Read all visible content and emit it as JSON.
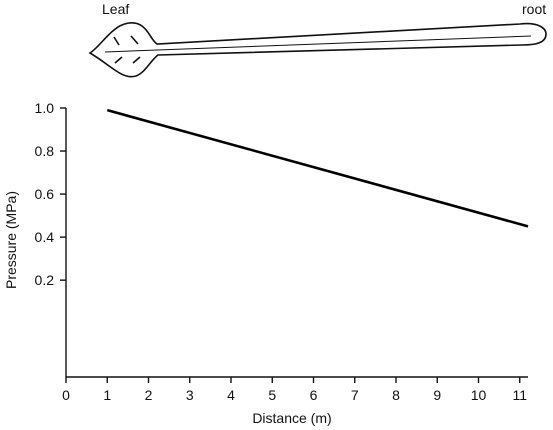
{
  "diagram": {
    "leaf_label": "Leaf",
    "root_label": "root"
  },
  "chart_data": {
    "type": "line",
    "title": "",
    "xlabel": "Distance (m)",
    "ylabel": "Pressure (MPa)",
    "xlim": [
      0,
      11.2
    ],
    "ylim": [
      -0.25,
      1.0
    ],
    "xticks": [
      0,
      1,
      2,
      3,
      4,
      5,
      6,
      7,
      8,
      9,
      10,
      11
    ],
    "xtick_labels": [
      "0",
      "1",
      "2",
      "3",
      "4",
      "5",
      "6",
      "7",
      "8",
      "9",
      "10",
      "11"
    ],
    "yticks": [
      0.2,
      0.4,
      0.6,
      0.8,
      1.0
    ],
    "ytick_labels": [
      "0.2",
      "0.4",
      "0.6",
      "0.8",
      "1.0"
    ],
    "grid": false,
    "legend": "none",
    "series": [
      {
        "x": [
          1,
          11.2
        ],
        "y": [
          0.99,
          0.45
        ],
        "color": "#000000"
      }
    ]
  }
}
